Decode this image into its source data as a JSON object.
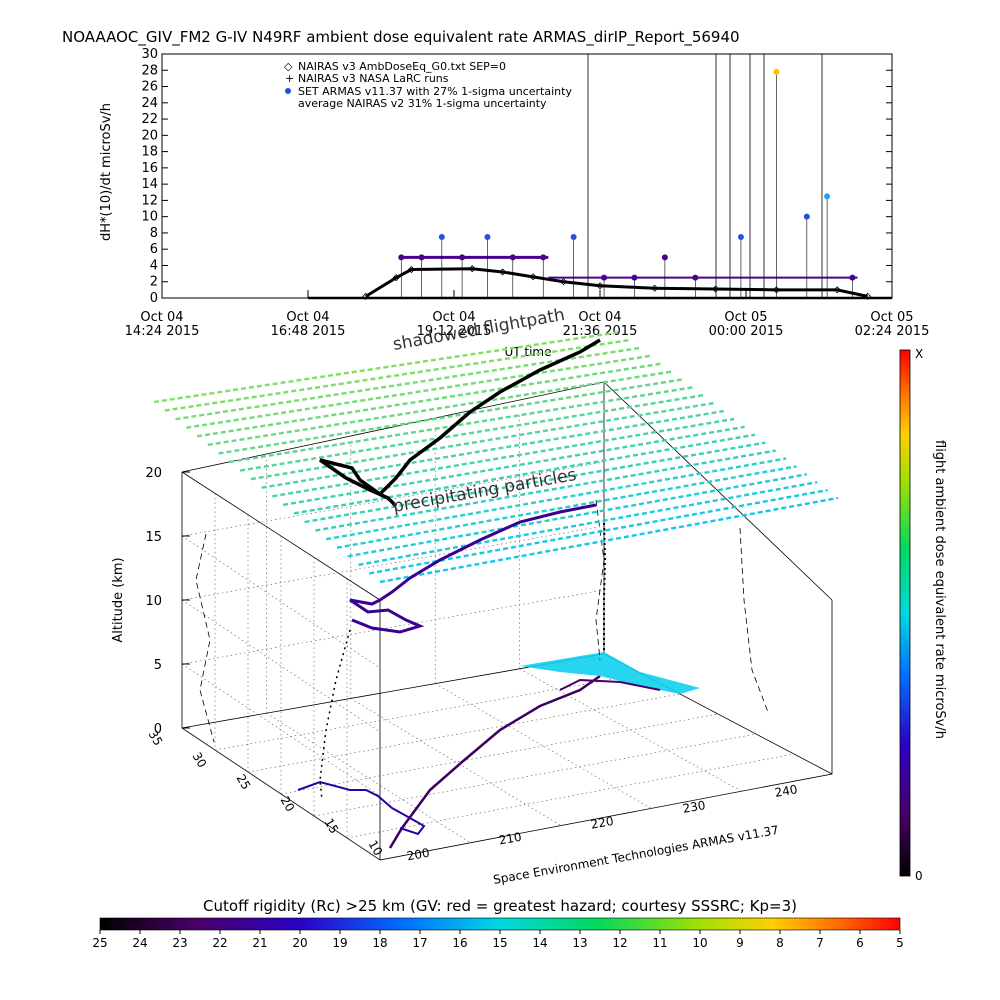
{
  "title": "NOAAAOC_GIV_FM2 G-IV   N49RF  ambient dose equivalent rate ARMAS_dirIP_Report_56940",
  "top_chart": {
    "ylabel": "dH*(10)/dt microSv/h",
    "y_ticks": [
      "0",
      "2",
      "4",
      "6",
      "8",
      "10",
      "12",
      "14",
      "16",
      "18",
      "20",
      "22",
      "24",
      "26",
      "28",
      "30"
    ],
    "x_ticks": [
      {
        "line1": "Oct 04",
        "line2": "14:24 2015"
      },
      {
        "line1": "Oct 04",
        "line2": "16:48 2015"
      },
      {
        "line1": "Oct 04",
        "line2": "19:12 2015"
      },
      {
        "line1": "Oct 04",
        "line2": "21:36 2015"
      },
      {
        "line1": "Oct 05",
        "line2": "00:00 2015"
      },
      {
        "line1": "Oct 05",
        "line2": "02:24 2015"
      }
    ],
    "xlabel": "UT time",
    "legend": [
      "NAIRAS v3 AmbDoseEq_G0.txt SEP=0",
      "NAIRAS v3 NASA LaRC runs",
      "SET ARMAS v11.37 with 27% 1-sigma uncertainty",
      "average NAIRAS v2 31% 1-sigma uncertainty"
    ]
  },
  "chart_data": [
    {
      "type": "scatter",
      "title": "NOAAAOC_GIV_FM2 G-IV   N49RF  ambient dose equivalent rate ARMAS_dirIP_Report_56940",
      "xlabel": "UT time",
      "ylabel": "dH*(10)/dt microSv/h",
      "ylim": [
        0,
        30
      ],
      "x_range": [
        "2015-10-04 14:24",
        "2015-10-05 02:24"
      ],
      "grid": false,
      "legend_position": "top-left",
      "series": [
        {
          "name": "NAIRAS v3 AmbDoseEq_G0.txt SEP=0",
          "x": [
            "2015-10-04 17:45",
            "2015-10-04 18:15",
            "2015-10-04 18:30",
            "2015-10-04 19:30",
            "2015-10-04 20:00",
            "2015-10-04 20:30",
            "2015-10-04 21:00",
            "2015-10-04 21:36",
            "2015-10-04 22:30",
            "2015-10-04 23:30",
            "2015-10-05 00:30",
            "2015-10-05 01:30",
            "2015-10-05 02:00"
          ],
          "values": [
            0.2,
            2.5,
            3.5,
            3.6,
            3.2,
            2.6,
            2.0,
            1.5,
            1.2,
            1.1,
            1.0,
            1.0,
            0.2
          ]
        },
        {
          "name": "SET ARMAS v11.37 with 27% 1-sigma uncertainty",
          "x": [
            "2015-10-04 18:20",
            "2015-10-04 18:40",
            "2015-10-04 19:00",
            "2015-10-04 19:20",
            "2015-10-04 19:45",
            "2015-10-04 20:10",
            "2015-10-04 20:40",
            "2015-10-04 21:10",
            "2015-10-04 21:40",
            "2015-10-04 22:10",
            "2015-10-04 22:40",
            "2015-10-04 23:10",
            "2015-10-04 23:55",
            "2015-10-05 00:30",
            "2015-10-05 01:00",
            "2015-10-05 01:20",
            "2015-10-05 01:45"
          ],
          "values": [
            5.0,
            5.0,
            7.5,
            5.0,
            7.5,
            5.0,
            5.0,
            7.5,
            2.5,
            2.5,
            5.0,
            2.5,
            7.5,
            27.8,
            10.0,
            12.5,
            2.5
          ]
        }
      ]
    },
    {
      "type": "scatter",
      "title": "shadowed flightpath",
      "zlabel": "Altitude (km)",
      "zlim": [
        0,
        20
      ],
      "z_ticks": [
        "0",
        "5",
        "10",
        "15",
        "20"
      ],
      "longitude_ticks": [
        "200",
        "210",
        "220",
        "230",
        "240"
      ],
      "latitude_ticks": [
        "10",
        "15",
        "20",
        "25",
        "30",
        "35"
      ],
      "annotations": [
        "shadowed flightpath",
        "precipitating particles"
      ],
      "colorbar": {
        "label": "flight ambient dose equivalent rate microSv/h",
        "min_label": "0",
        "max_label": "X"
      },
      "credit": "Space Environment Technologies ARMAS v11.37"
    },
    {
      "type": "heatmap",
      "title": "Cutoff rigidity (Rc) >25 km (GV: red = greatest hazard; courtesy SSSRC; Kp=3)",
      "ticks": [
        "25",
        "24",
        "23",
        "22",
        "21",
        "20",
        "19",
        "18",
        "17",
        "16",
        "15",
        "14",
        "13",
        "12",
        "11",
        "10",
        "9",
        "8",
        "7",
        "6",
        "5"
      ],
      "colors": [
        "#000000",
        "#4a0068",
        "#2b00c8",
        "#0060ff",
        "#00d0e0",
        "#00e060",
        "#90e000",
        "#ffd000",
        "#ff7000",
        "#ff0000"
      ]
    }
  ]
}
